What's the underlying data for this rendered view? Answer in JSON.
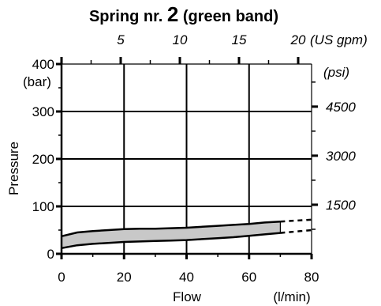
{
  "chart_data": {
    "type": "area",
    "title_prefix": "Spring nr. ",
    "title_number": "2",
    "title_suffix": " (green band)",
    "xlabel": "Flow",
    "x_unit": "(l/min)",
    "ylabel": "Pressure",
    "y_unit": "(bar)",
    "xlim": [
      0,
      80
    ],
    "ylim": [
      0,
      400
    ],
    "x_ticks": [
      0,
      20,
      40,
      60,
      80
    ],
    "y_ticks": [
      0,
      100,
      200,
      300,
      400
    ],
    "top_axis": {
      "unit": "(US gpm)",
      "ticks": [
        5,
        10,
        15,
        20
      ],
      "tick_labels": [
        "5",
        "10",
        "15",
        "20"
      ]
    },
    "right_axis": {
      "unit": "(psi)",
      "ticks": [
        1500,
        3000,
        4500
      ],
      "tick_labels": [
        "1500",
        "3000",
        "4500"
      ]
    },
    "grid": true,
    "series": [
      {
        "role": "upper",
        "x": [
          0,
          5,
          10,
          15,
          20,
          25,
          30,
          35,
          40,
          45,
          50,
          55,
          60,
          65,
          70
        ],
        "values": [
          37,
          45,
          48,
          50,
          52,
          53,
          53,
          54,
          55,
          57,
          59,
          61,
          63,
          66,
          68
        ]
      },
      {
        "role": "lower",
        "x": [
          0,
          5,
          10,
          15,
          20,
          25,
          30,
          35,
          40,
          45,
          50,
          55,
          60,
          65,
          70
        ],
        "values": [
          12,
          18,
          21,
          23,
          25,
          26,
          27,
          28,
          29,
          31,
          33,
          35,
          38,
          41,
          44
        ]
      }
    ],
    "band_color": "#c8c8c8",
    "line_color": "#000000"
  }
}
